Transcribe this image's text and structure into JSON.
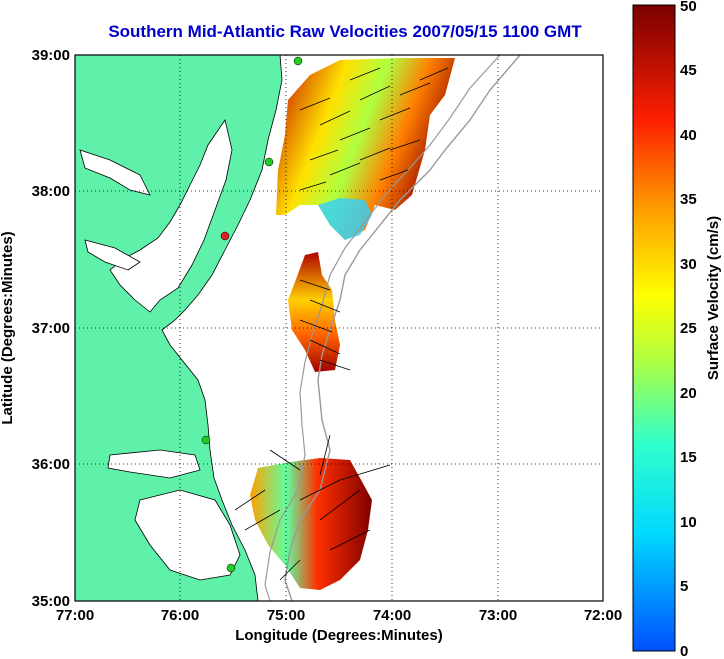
{
  "title": "Southern Mid-Atlantic Raw Velocities 2007/05/15 1100 GMT",
  "x_axis": {
    "label": "Longitude (Degrees:Minutes)",
    "ticks": [
      "77:00",
      "76:00",
      "75:00",
      "74:00",
      "73:00",
      "72:00"
    ]
  },
  "y_axis": {
    "label": "Latitude (Degrees:Minutes)",
    "ticks": [
      "39:00",
      "38:00",
      "37:00",
      "36:00",
      "35:00"
    ]
  },
  "colorbar": {
    "label": "Surface Velocity (cm/s)",
    "ticks": [
      "50",
      "45",
      "40",
      "35",
      "30",
      "25",
      "20",
      "15",
      "10",
      "5",
      "0"
    ],
    "min": 0,
    "max": 50,
    "colormap": "jet"
  },
  "colors": {
    "land": "#5ff0aa",
    "ocean": "#ffffff",
    "bathymetry": "#999999",
    "station_green": "#22cc22",
    "station_red": "#dd2222",
    "title": "#0000cc"
  },
  "map_extent": {
    "lon_west": -77,
    "lon_east": -72,
    "lat_south": 35,
    "lat_north": 39
  }
}
